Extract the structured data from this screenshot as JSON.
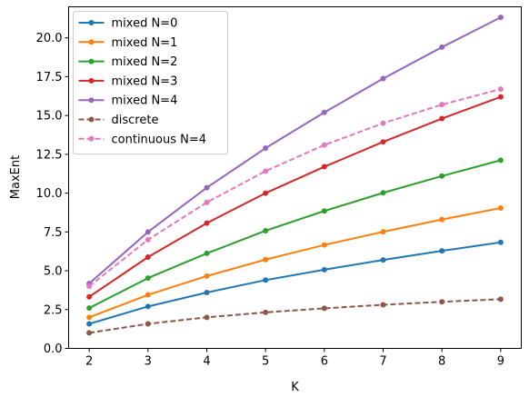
{
  "chart_data": {
    "type": "line",
    "xlabel": "K",
    "ylabel": "MaxEnt",
    "x": [
      2,
      3,
      4,
      5,
      6,
      7,
      8,
      9
    ],
    "xlim": [
      1.65,
      9.35
    ],
    "ylim": [
      0,
      22.0
    ],
    "xticks": [
      2,
      3,
      4,
      5,
      6,
      7,
      8,
      9
    ],
    "yticks": [
      0.0,
      2.5,
      5.0,
      7.5,
      10.0,
      12.5,
      15.0,
      17.5,
      20.0
    ],
    "ytick_labels": [
      "0.0",
      "2.5",
      "5.0",
      "7.5",
      "10.0",
      "12.5",
      "15.0",
      "17.5",
      "20.0"
    ],
    "grid": false,
    "legend_position": "top-left",
    "series": [
      {
        "name": "mixed N=0",
        "color": "#1f77b4",
        "style": "solid",
        "values": [
          1.58,
          2.7,
          3.6,
          4.4,
          5.07,
          5.7,
          6.28,
          6.83
        ]
      },
      {
        "name": "mixed N=1",
        "color": "#ff7f0e",
        "style": "solid",
        "values": [
          2.0,
          3.45,
          4.66,
          5.72,
          6.66,
          7.51,
          8.3,
          9.04
        ]
      },
      {
        "name": "mixed N=2",
        "color": "#2ca02c",
        "style": "solid",
        "values": [
          2.6,
          4.53,
          6.12,
          7.58,
          8.85,
          10.02,
          11.1,
          12.12
        ]
      },
      {
        "name": "mixed N=3",
        "color": "#d62728",
        "style": "solid",
        "values": [
          3.32,
          5.88,
          8.07,
          10.0,
          11.7,
          13.3,
          14.8,
          16.2
        ]
      },
      {
        "name": "mixed N=4",
        "color": "#9467bd",
        "style": "solid",
        "values": [
          4.18,
          7.5,
          10.35,
          12.9,
          15.2,
          17.38,
          19.4,
          21.32
        ]
      },
      {
        "name": "discrete",
        "color": "#8c564b",
        "style": "dashed",
        "values": [
          1.0,
          1.58,
          2.0,
          2.32,
          2.58,
          2.81,
          3.0,
          3.17
        ]
      },
      {
        "name": "continuous N=4",
        "color": "#e377c2",
        "style": "dashed",
        "values": [
          4.0,
          7.0,
          9.4,
          11.42,
          13.1,
          14.5,
          15.7,
          16.7
        ]
      }
    ]
  }
}
